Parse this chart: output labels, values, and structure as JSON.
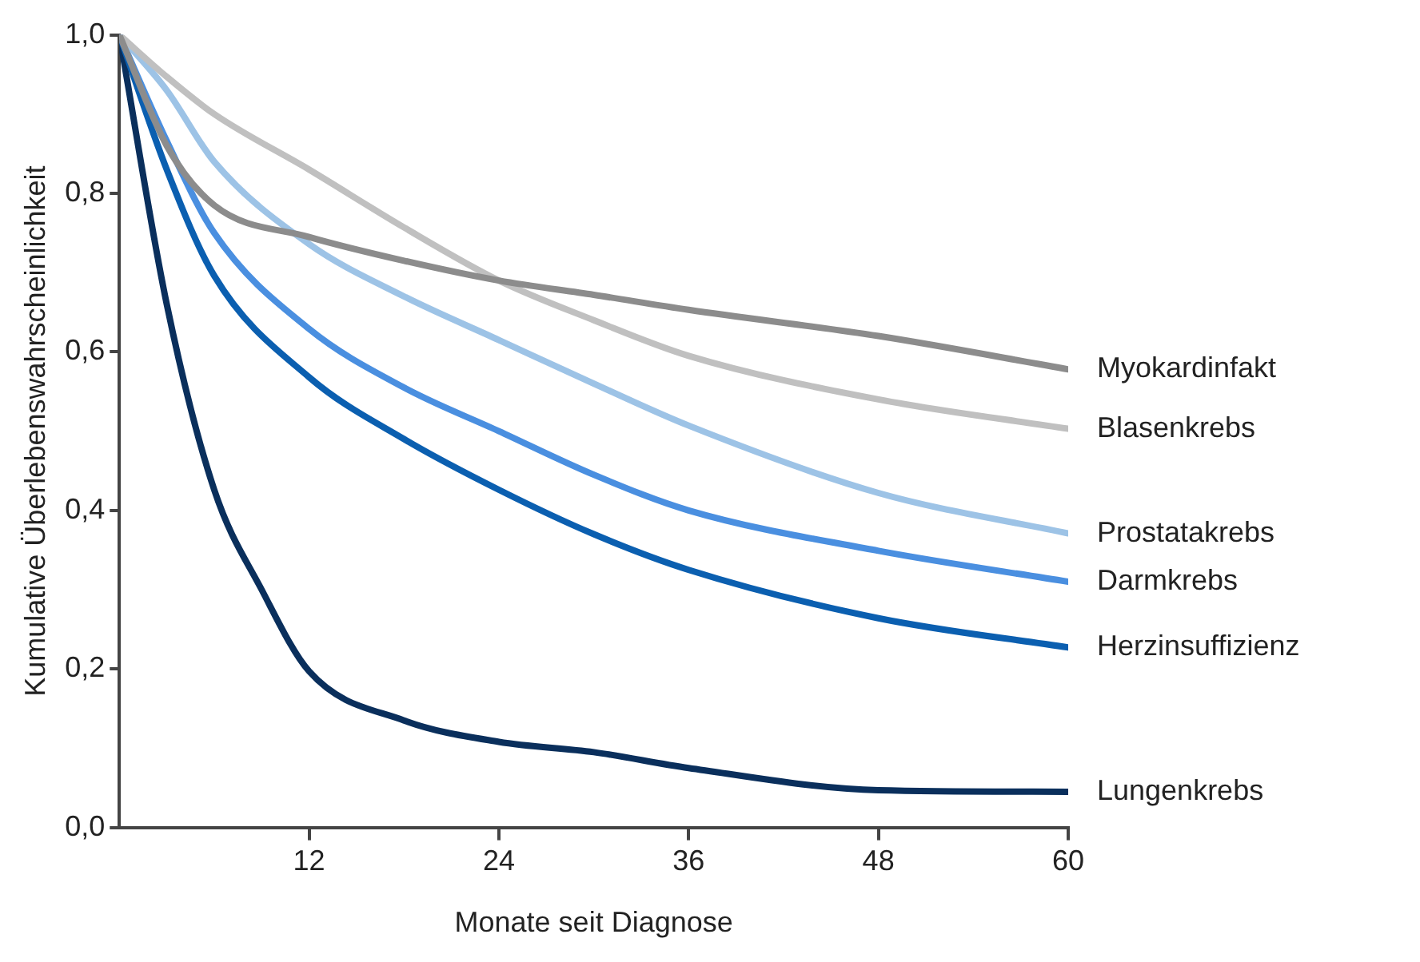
{
  "chart_data": {
    "type": "line",
    "xlabel": "Monate seit Diagnose",
    "ylabel": "Kumulative Überlebenswahrscheinlichkeit",
    "x": [
      0,
      3,
      6,
      12,
      18,
      24,
      30,
      36,
      48,
      60
    ],
    "series": [
      {
        "name": "Myokardinfakt",
        "color": "#8c8c8c",
        "values": [
          1,
          0.86,
          0.785,
          0.745,
          0.715,
          0.69,
          0.672,
          0.653,
          0.62,
          0.578
        ]
      },
      {
        "name": "Blasenkrebs",
        "color": "#c0c0c0",
        "values": [
          1,
          0.947,
          0.9,
          0.83,
          0.757,
          0.69,
          0.64,
          0.595,
          0.54,
          0.503
        ]
      },
      {
        "name": "Prostatakrebs",
        "color": "#9dc3e6",
        "values": [
          1,
          0.93,
          0.84,
          0.736,
          0.67,
          0.615,
          0.56,
          0.507,
          0.422,
          0.371
        ]
      },
      {
        "name": "Darmkrebs",
        "color": "#4a8fe0",
        "values": [
          1,
          0.866,
          0.75,
          0.629,
          0.555,
          0.5,
          0.445,
          0.4,
          0.349,
          0.31
        ]
      },
      {
        "name": "Herzinsuffizienz",
        "color": "#0b5fb0",
        "values": [
          1,
          0.83,
          0.696,
          0.568,
          0.49,
          0.426,
          0.37,
          0.325,
          0.264,
          0.227
        ]
      },
      {
        "name": "Lungenkrebs",
        "color": "#0a2f5c",
        "x": [
          0,
          3,
          6,
          9,
          12,
          18,
          24,
          30,
          36,
          48,
          60
        ],
        "values": [
          1,
          0.66,
          0.426,
          0.3,
          0.197,
          0.135,
          0.108,
          0.095,
          0.075,
          0.047,
          0.045
        ]
      }
    ],
    "xlim": [
      0,
      60
    ],
    "xticks": [
      12,
      24,
      36,
      48,
      60
    ],
    "ylim": [
      0,
      1
    ],
    "yticks": [
      {
        "value": 0,
        "label": "0,0"
      },
      {
        "value": 0.2,
        "label": "0,2"
      },
      {
        "value": 0.4,
        "label": "0,4"
      },
      {
        "value": 0.6,
        "label": "0,6"
      },
      {
        "value": 0.8,
        "label": "0,8"
      },
      {
        "value": 1,
        "label": "1,0"
      }
    ],
    "grid": false,
    "legend": false,
    "marker": "none",
    "line_style": "solid"
  }
}
